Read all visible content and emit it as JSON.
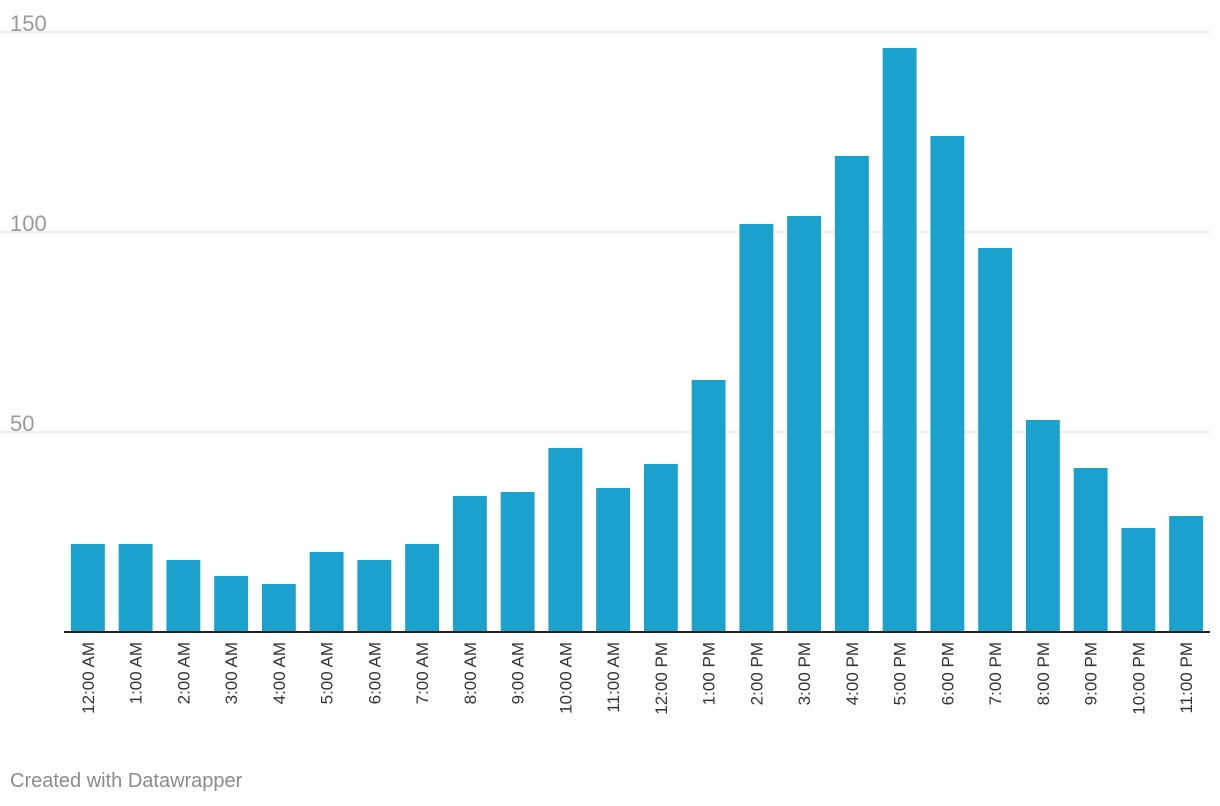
{
  "chart_data": {
    "type": "bar",
    "categories": [
      "12:00 AM",
      "1:00 AM",
      "2:00 AM",
      "3:00 AM",
      "4:00 AM",
      "5:00 AM",
      "6:00 AM",
      "7:00 AM",
      "8:00 AM",
      "9:00 AM",
      "10:00 AM",
      "11:00 AM",
      "12:00 PM",
      "1:00 PM",
      "2:00 PM",
      "3:00 PM",
      "4:00 PM",
      "5:00 PM",
      "6:00 PM",
      "7:00 PM",
      "8:00 PM",
      "9:00 PM",
      "10:00 PM",
      "11:00 PM"
    ],
    "values": [
      22,
      22,
      18,
      14,
      12,
      20,
      18,
      22,
      34,
      35,
      46,
      36,
      42,
      63,
      102,
      104,
      119,
      146,
      124,
      96,
      53,
      41,
      26,
      29
    ],
    "ylim": [
      0,
      150
    ],
    "yticks": [
      50,
      100,
      150
    ],
    "grid": true,
    "bar_color": "#1ba1ce",
    "title": "",
    "xlabel": "",
    "ylabel": ""
  },
  "footer": {
    "credit": "Created with Datawrapper"
  }
}
